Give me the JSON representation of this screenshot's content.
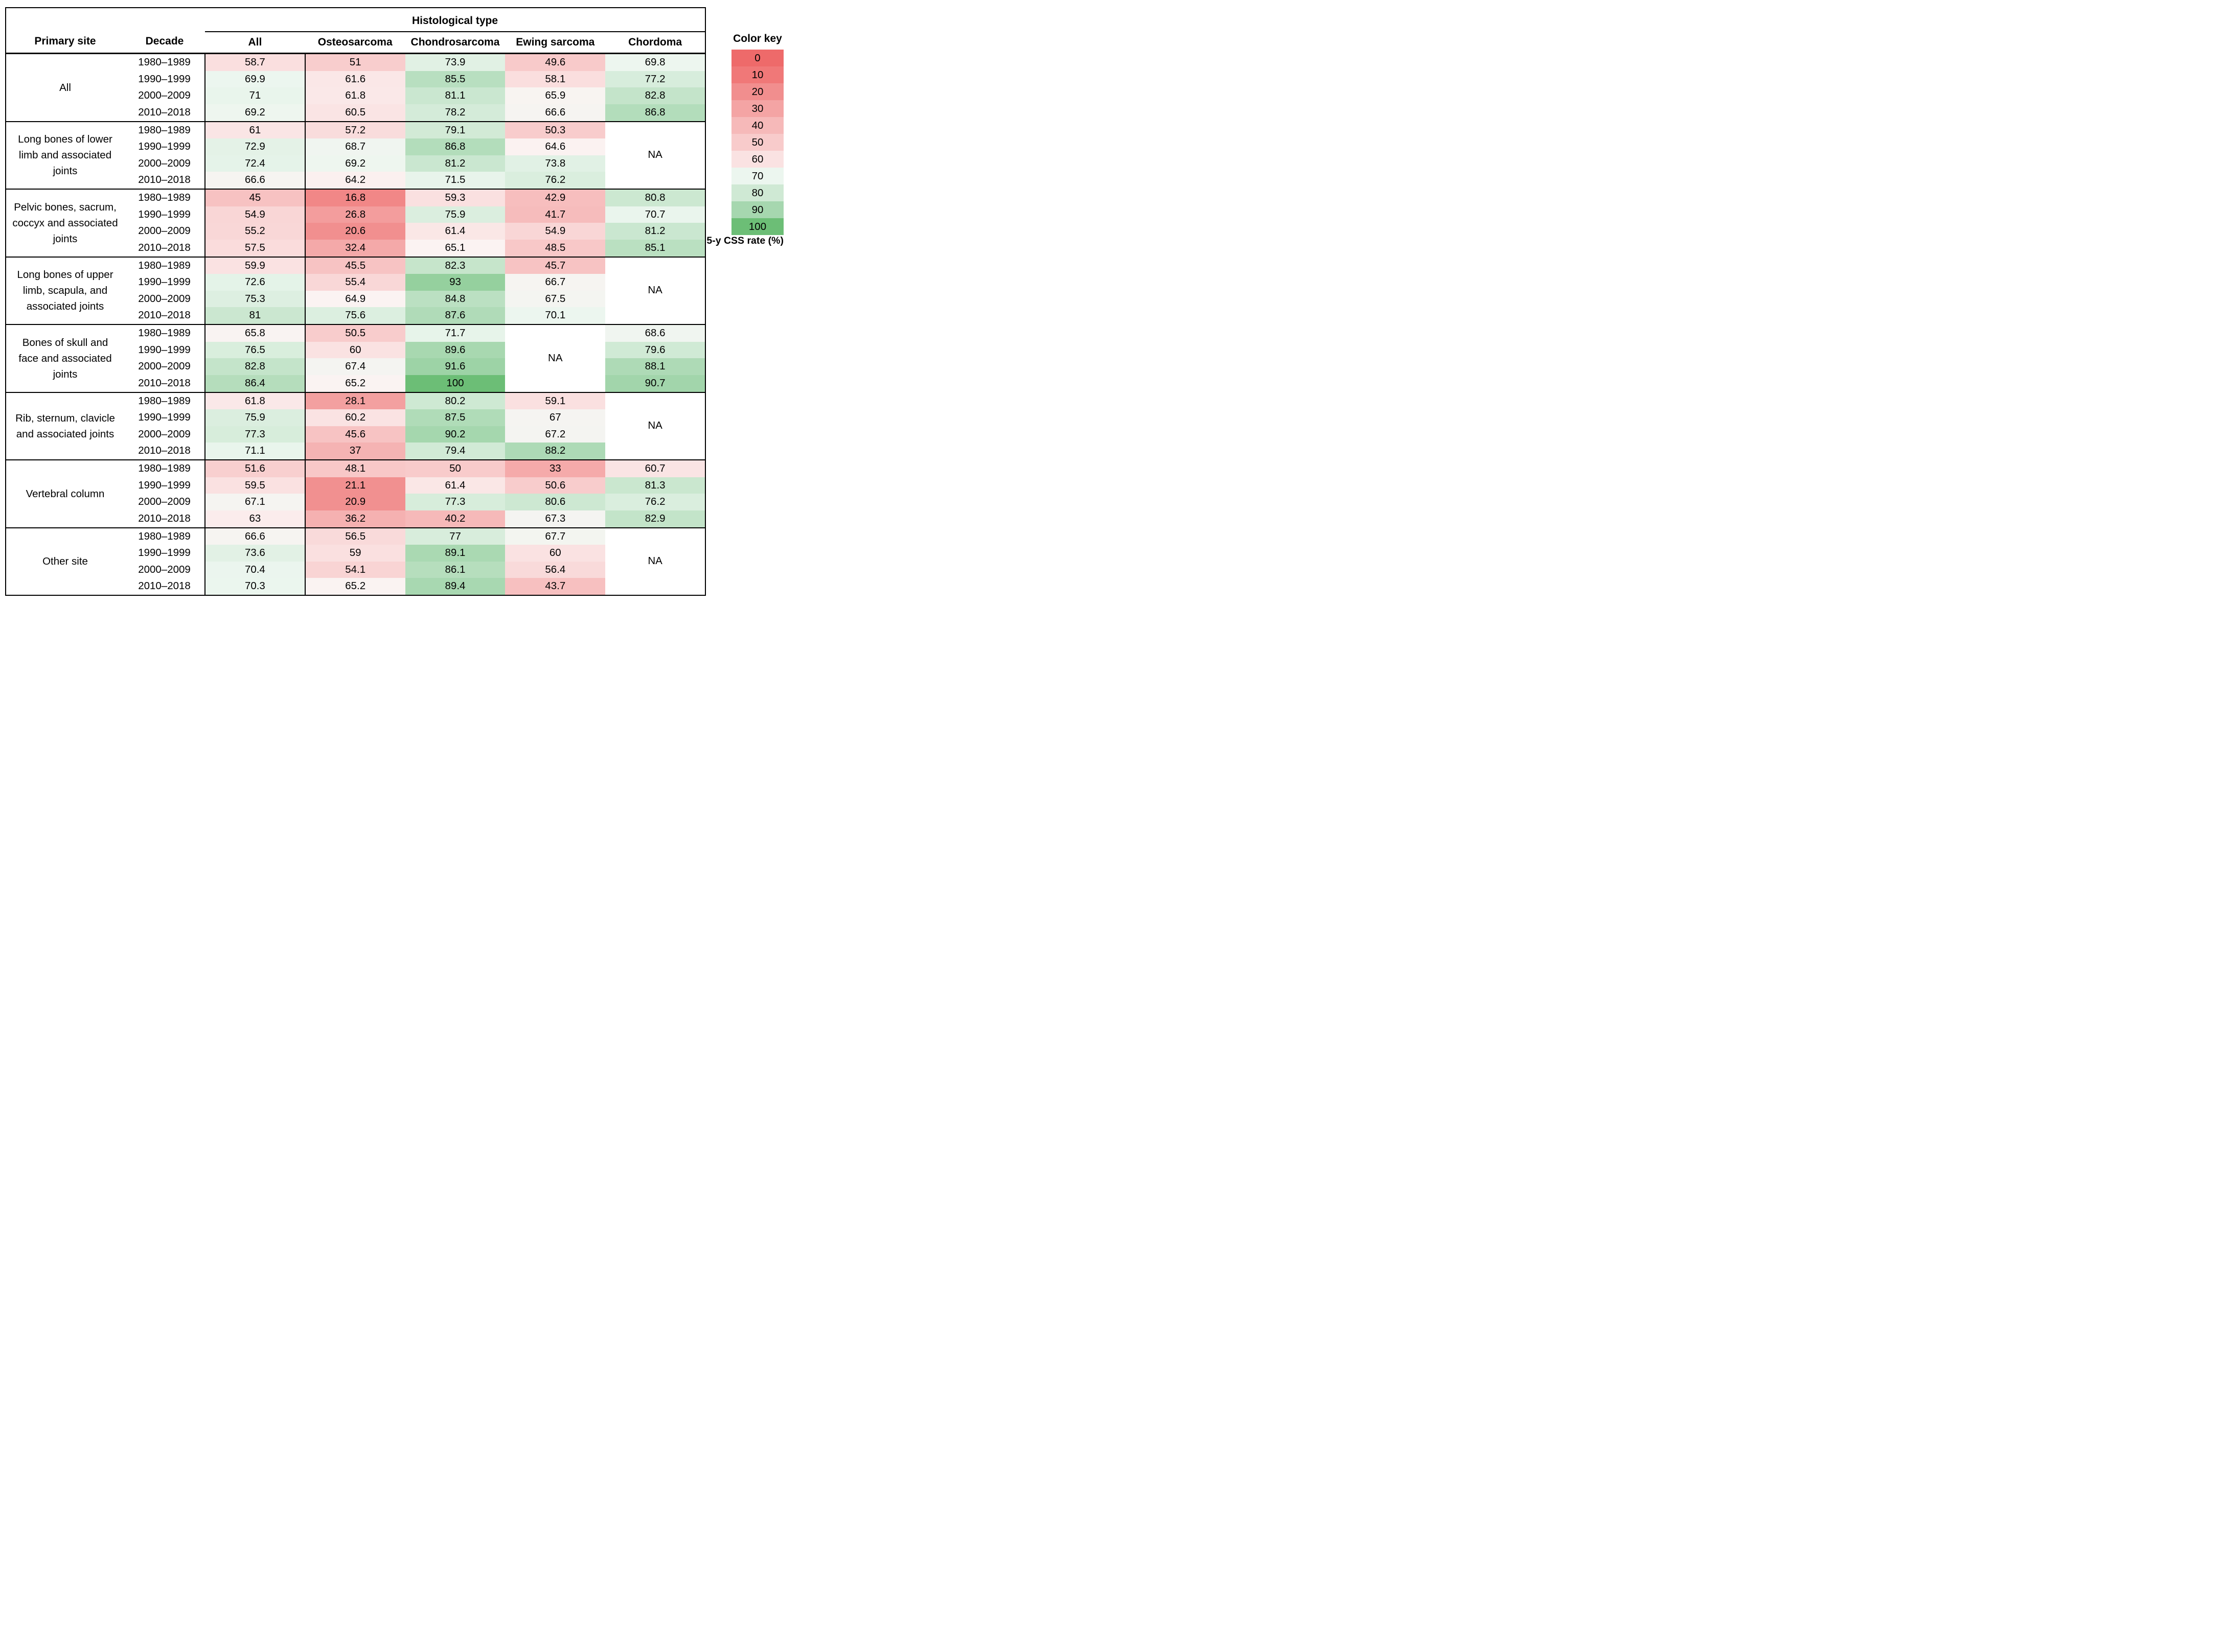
{
  "figure": {
    "table": {
      "header": {
        "primary_site": "Primary site",
        "decade": "Decade",
        "histological_type": "Histological type"
      },
      "na_label": "NA"
    },
    "color_key": {
      "title": "Color key",
      "unit_label": "5-y CSS rate (%)",
      "white_point": {
        "value": 65,
        "color": "#fbf3f2"
      },
      "entries": [
        {
          "value": 0,
          "color": "#ee6a6a"
        },
        {
          "value": 10,
          "color": "#f07878"
        },
        {
          "value": 20,
          "color": "#f18e8e"
        },
        {
          "value": 30,
          "color": "#f4a4a4"
        },
        {
          "value": 40,
          "color": "#f6b9b9"
        },
        {
          "value": 50,
          "color": "#f8cbcb"
        },
        {
          "value": 60,
          "color": "#fae2e2"
        },
        {
          "value": 70,
          "color": "#ecf6ef"
        },
        {
          "value": 80,
          "color": "#cfe9d4"
        },
        {
          "value": 90,
          "color": "#a6d7af"
        },
        {
          "value": 100,
          "color": "#6cbe76"
        }
      ]
    }
  },
  "chart_data": {
    "type": "heatmap",
    "title": "Histological type",
    "value_label": "5-y CSS rate (%)",
    "value_range": [
      0,
      100
    ],
    "legend_position": "right",
    "columns": [
      "All",
      "Osteosarcoma",
      "Chondrosarcoma",
      "Ewing sarcoma",
      "Chordoma"
    ],
    "decades": [
      "1980–1989",
      "1990–1999",
      "2000–2009",
      "2010–2018"
    ],
    "sites": [
      {
        "name": "All",
        "values": [
          [
            58.7,
            51,
            73.9,
            49.6,
            69.8
          ],
          [
            69.9,
            61.6,
            85.5,
            58.1,
            77.2
          ],
          [
            71,
            61.8,
            81.1,
            65.9,
            82.8
          ],
          [
            69.2,
            60.5,
            78.2,
            66.6,
            86.8
          ]
        ]
      },
      {
        "name": "Long bones of lower limb and associated joints",
        "values": [
          [
            61,
            57.2,
            79.1,
            50.3,
            null
          ],
          [
            72.9,
            68.7,
            86.8,
            64.6,
            null
          ],
          [
            72.4,
            69.2,
            81.2,
            73.8,
            null
          ],
          [
            66.6,
            64.2,
            71.5,
            76.2,
            null
          ]
        ]
      },
      {
        "name": "Pelvic bones, sacrum, coccyx and associated joints",
        "values": [
          [
            45,
            16.8,
            59.3,
            42.9,
            80.8
          ],
          [
            54.9,
            26.8,
            75.9,
            41.7,
            70.7
          ],
          [
            55.2,
            20.6,
            61.4,
            54.9,
            81.2
          ],
          [
            57.5,
            32.4,
            65.1,
            48.5,
            85.1
          ]
        ]
      },
      {
        "name": "Long bones of upper limb, scapula, and associated joints",
        "values": [
          [
            59.9,
            45.5,
            82.3,
            45.7,
            null
          ],
          [
            72.6,
            55.4,
            93,
            66.7,
            null
          ],
          [
            75.3,
            64.9,
            84.8,
            67.5,
            null
          ],
          [
            81,
            75.6,
            87.6,
            70.1,
            null
          ]
        ]
      },
      {
        "name": "Bones of skull and face and associated joints",
        "values": [
          [
            65.8,
            50.5,
            71.7,
            null,
            68.6
          ],
          [
            76.5,
            60,
            89.6,
            null,
            79.6
          ],
          [
            82.8,
            67.4,
            91.6,
            null,
            88.1
          ],
          [
            86.4,
            65.2,
            100,
            null,
            90.7
          ]
        ]
      },
      {
        "name": "Rib, sternum, clavicle and associated joints",
        "values": [
          [
            61.8,
            28.1,
            80.2,
            59.1,
            null
          ],
          [
            75.9,
            60.2,
            87.5,
            67,
            null
          ],
          [
            77.3,
            45.6,
            90.2,
            67.2,
            null
          ],
          [
            71.1,
            37,
            79.4,
            88.2,
            null
          ]
        ]
      },
      {
        "name": "Vertebral column",
        "values": [
          [
            51.6,
            48.1,
            50,
            33,
            60.7
          ],
          [
            59.5,
            21.1,
            61.4,
            50.6,
            81.3
          ],
          [
            67.1,
            20.9,
            77.3,
            80.6,
            76.2
          ],
          [
            63,
            36.2,
            40.2,
            67.3,
            82.9
          ]
        ]
      },
      {
        "name": "Other site",
        "values": [
          [
            66.6,
            56.5,
            77,
            67.7,
            null
          ],
          [
            73.6,
            59,
            89.1,
            60,
            null
          ],
          [
            70.4,
            54.1,
            86.1,
            56.4,
            null
          ],
          [
            70.3,
            65.2,
            89.4,
            43.7,
            null
          ]
        ]
      }
    ]
  }
}
